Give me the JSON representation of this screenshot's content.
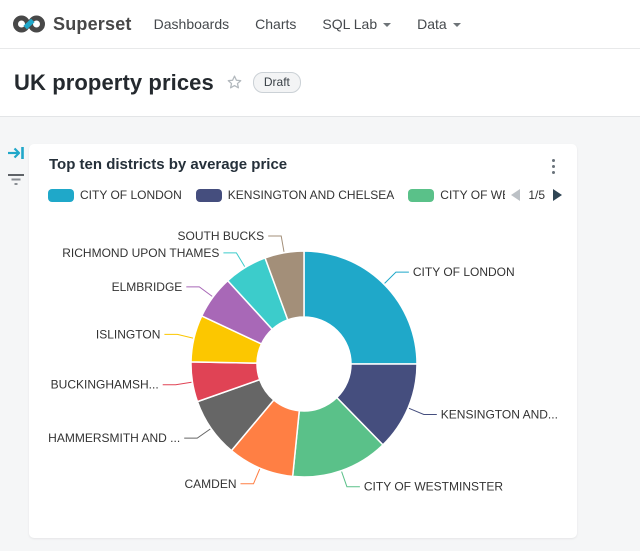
{
  "colors": {
    "accent": "#20A7C9",
    "page_background": "#F5F6F7",
    "pager_active": "#2F4554",
    "pager_disabled": "#BCC1C6"
  },
  "top_nav": {
    "brand": "Superset",
    "items": [
      {
        "label": "Dashboards",
        "caret": false
      },
      {
        "label": "Charts",
        "caret": false
      },
      {
        "label": "SQL Lab",
        "caret": true
      },
      {
        "label": "Data",
        "caret": true
      }
    ]
  },
  "page_header": {
    "title": "UK property prices",
    "badge": "Draft",
    "favorite_icon": "star-outline-icon"
  },
  "filter_rail": {
    "expand_icon": "arrow-right-to-bar-icon",
    "collapse_icon": "funnel-lines-icon"
  },
  "chart_card": {
    "title": "Top ten districts by average price",
    "menu_icon": "kebab-vertical-icon",
    "legend": {
      "visible_items": [
        {
          "label": "CITY OF LONDON",
          "color": "#1FA8C9"
        },
        {
          "label": "KENSINGTON AND CHELSEA",
          "color": "#454E7E"
        },
        {
          "label": "CITY OF WES",
          "color": "#5AC189"
        }
      ],
      "pager_label": "1/5",
      "prev_icon": "triangle-left-icon",
      "next_icon": "triangle-right-icon"
    }
  },
  "chart_data": {
    "type": "pie",
    "variant": "donut",
    "title": "Top ten districts by average price",
    "legend_position": "top",
    "unit": "percent_of_total (estimated from arc angles; numeric values not displayed)",
    "slices": [
      {
        "label": "CITY OF LONDON",
        "display_label": "CITY OF LONDON",
        "percent": 25.0,
        "color": "#1FA8C9"
      },
      {
        "label": "KENSINGTON AND CHELSEA",
        "display_label": "KENSINGTON AND...",
        "percent": 12.7,
        "color": "#454E7E"
      },
      {
        "label": "CITY OF WESTMINSTER",
        "display_label": "CITY OF WESTMINSTER",
        "percent": 13.9,
        "color": "#5AC189"
      },
      {
        "label": "CAMDEN",
        "display_label": "CAMDEN",
        "percent": 9.5,
        "color": "#FF7F44"
      },
      {
        "label": "HAMMERSMITH AND FULHAM",
        "display_label": "HAMMERSMITH AND ...",
        "percent": 8.5,
        "color": "#666666"
      },
      {
        "label": "BUCKINGHAMSHIRE",
        "display_label": "BUCKINGHAMSH...",
        "percent": 5.7,
        "color": "#E04355"
      },
      {
        "label": "ISLINGTON",
        "display_label": "ISLINGTON",
        "percent": 6.7,
        "color": "#FCC700"
      },
      {
        "label": "ELMBRIDGE",
        "display_label": "ELMBRIDGE",
        "percent": 6.2,
        "color": "#A868B7"
      },
      {
        "label": "RICHMOND UPON THAMES",
        "display_label": "RICHMOND UPON THAMES",
        "percent": 6.2,
        "color": "#3CCCCB"
      },
      {
        "label": "SOUTH BUCKS",
        "display_label": "SOUTH BUCKS",
        "percent": 5.6,
        "color": "#A38F79"
      }
    ]
  }
}
